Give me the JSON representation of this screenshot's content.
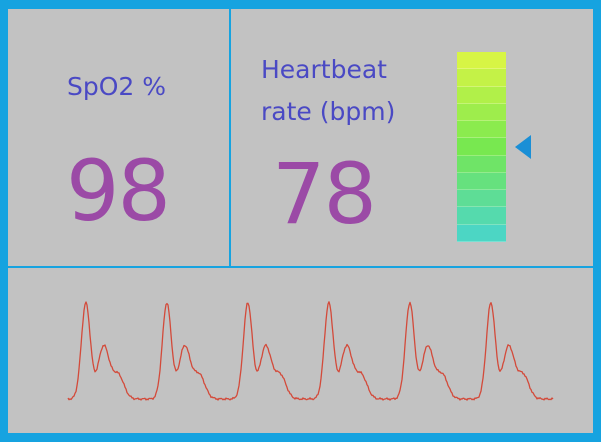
{
  "spo2": {
    "label": "SpO2 %",
    "value": "98"
  },
  "heartbeat": {
    "label_line1": "Heartbeat",
    "label_line2": "rate (bpm)",
    "value": "78",
    "level_fraction": 0.5
  },
  "colors": {
    "frame": "#16a3e0",
    "panel_bg": "#c2c2c2",
    "label": "#4a49c4",
    "value": "#9b4aa6",
    "waveform": "#d34a3a",
    "marker": "#1a8fd6",
    "bar_top": "#d7f545",
    "bar_bottom": "#4cd6c4"
  },
  "icons": {
    "level_marker": "triangle-left-icon"
  }
}
